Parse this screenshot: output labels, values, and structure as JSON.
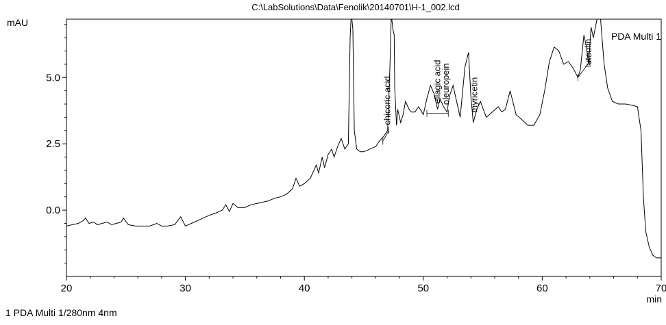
{
  "chart_data": {
    "type": "line",
    "title": "C:\\LabSolutions\\Data\\Fenolik\\20140701\\H-1_002.lcd",
    "ylabel": "mAU",
    "xlabel": "min",
    "xlim": [
      20,
      70
    ],
    "ylim": [
      -2.5,
      7.2
    ],
    "x_ticks": [
      20,
      30,
      40,
      50,
      60,
      70
    ],
    "y_ticks": [
      0.0,
      2.5,
      5.0
    ],
    "x_tick_labels": [
      "20",
      "30",
      "40",
      "50",
      "60",
      "70"
    ],
    "y_tick_labels": [
      "0.0",
      "2.5",
      "5.0"
    ],
    "grid": false,
    "legend_label": "PDA Multi 1",
    "footer": "1  PDA Multi 1/280nm 4nm",
    "series": [
      {
        "name": "PDA Multi 1",
        "x": [
          20.0,
          20.5,
          21.0,
          21.4,
          21.6,
          21.9,
          22.3,
          22.6,
          23.0,
          23.4,
          23.8,
          24.2,
          24.6,
          24.8,
          25.2,
          25.8,
          26.4,
          27.0,
          27.6,
          28.0,
          28.5,
          29.1,
          29.6,
          30.0,
          30.5,
          31.0,
          31.5,
          32.0,
          32.6,
          33.1,
          33.4,
          33.7,
          34.0,
          34.4,
          35.0,
          35.5,
          36.0,
          36.5,
          37.0,
          37.5,
          38.0,
          38.5,
          39.0,
          39.3,
          39.6,
          40.0,
          40.5,
          41.0,
          41.2,
          41.5,
          41.7,
          42.0,
          42.3,
          42.5,
          42.8,
          43.1,
          43.4,
          43.7,
          43.85,
          43.92,
          44.0,
          44.08,
          44.2,
          44.4,
          44.7,
          45.0,
          45.5,
          46.0,
          46.3,
          46.7,
          47.0,
          47.2,
          47.3,
          47.35,
          47.45,
          47.55,
          47.6,
          47.75,
          47.85,
          48.1,
          48.3,
          48.5,
          48.8,
          49.0,
          49.3,
          49.6,
          50.0,
          50.3,
          50.6,
          50.9,
          51.2,
          51.4,
          51.7,
          52.0,
          52.2,
          52.5,
          52.8,
          53.1,
          53.5,
          53.8,
          54.0,
          54.2,
          54.5,
          54.8,
          55.3,
          55.8,
          56.3,
          56.6,
          56.9,
          57.3,
          57.8,
          58.3,
          58.8,
          59.3,
          59.8,
          60.2,
          60.6,
          61.0,
          61.4,
          61.8,
          62.2,
          62.6,
          63.0,
          63.2,
          63.5,
          63.7,
          63.9,
          64.1,
          64.3,
          64.6,
          64.9,
          65.2,
          65.5,
          65.9,
          66.4,
          67.0,
          67.6,
          68.0,
          68.3,
          68.5,
          68.7,
          69.0,
          69.3,
          69.6,
          70.0
        ],
        "y": [
          -0.6,
          -0.55,
          -0.5,
          -0.4,
          -0.3,
          -0.5,
          -0.45,
          -0.55,
          -0.5,
          -0.45,
          -0.55,
          -0.5,
          -0.45,
          -0.3,
          -0.55,
          -0.6,
          -0.6,
          -0.6,
          -0.5,
          -0.6,
          -0.6,
          -0.55,
          -0.25,
          -0.6,
          -0.5,
          -0.4,
          -0.3,
          -0.2,
          -0.1,
          0.0,
          0.2,
          -0.05,
          0.25,
          0.1,
          0.1,
          0.2,
          0.25,
          0.3,
          0.35,
          0.45,
          0.5,
          0.6,
          0.8,
          1.2,
          0.9,
          1.0,
          1.2,
          1.7,
          1.4,
          2.0,
          1.6,
          2.1,
          2.3,
          2.0,
          2.4,
          2.7,
          2.3,
          2.5,
          6.5,
          7.2,
          7.2,
          6.8,
          3.0,
          2.3,
          2.2,
          2.2,
          2.3,
          2.4,
          2.6,
          2.8,
          3.0,
          5.5,
          7.2,
          7.2,
          6.8,
          6.6,
          4.6,
          3.2,
          3.8,
          3.3,
          3.6,
          4.1,
          3.8,
          3.7,
          3.7,
          3.9,
          3.6,
          4.2,
          4.7,
          4.4,
          3.8,
          4.2,
          3.9,
          3.7,
          4.3,
          4.7,
          4.1,
          3.5,
          5.4,
          5.95,
          4.3,
          3.3,
          3.8,
          4.1,
          3.5,
          3.7,
          3.9,
          3.7,
          3.8,
          4.5,
          3.6,
          3.4,
          3.2,
          3.2,
          3.6,
          4.5,
          5.6,
          6.15,
          6.0,
          5.5,
          5.6,
          5.35,
          5.0,
          5.3,
          6.6,
          6.2,
          5.5,
          6.9,
          6.5,
          7.2,
          7.2,
          5.5,
          4.6,
          4.1,
          4.0,
          4.0,
          3.95,
          3.9,
          3.0,
          0.5,
          -0.8,
          -1.4,
          -1.7,
          -1.8,
          -1.8
        ]
      }
    ],
    "annotations": [
      {
        "label": "chicoric acid",
        "x": 47.0
      },
      {
        "label": "ellagic acid",
        "x": 51.2
      },
      {
        "label": "oleuropein",
        "x": 51.9
      },
      {
        "label": "myricetin",
        "x": 54.3
      },
      {
        "label": "luteolin",
        "x": 63.9
      }
    ],
    "baseline_segments": [
      {
        "x1": 46.6,
        "y1": 2.6,
        "x2": 47.1,
        "y2": 3.0
      },
      {
        "x1": 50.3,
        "y1": 3.65,
        "x2": 52.1,
        "y2": 3.65
      },
      {
        "x1": 63.0,
        "y1": 5.0,
        "x2": 64.0,
        "y2": 5.6
      }
    ]
  }
}
